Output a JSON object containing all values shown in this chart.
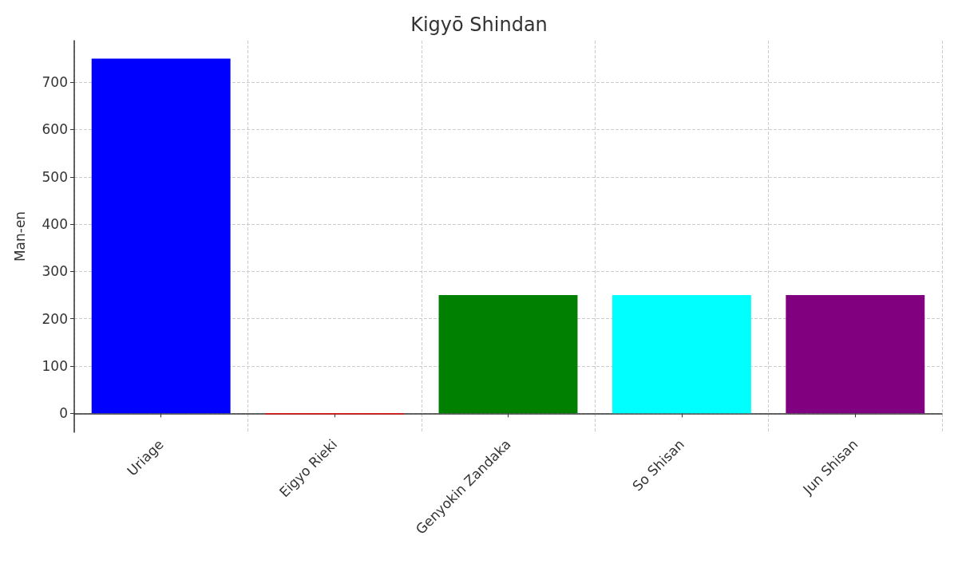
{
  "chart_data": {
    "type": "bar",
    "title": "Kigyō Shindan",
    "ylabel": "Man-en",
    "categories": [
      "Uriage",
      "Eigyo Rieki",
      "Genyokin Zandaka",
      "So Shisan",
      "Jun Shisan"
    ],
    "values": [
      750,
      -2,
      250,
      250,
      250
    ],
    "colors": [
      "#0000ff",
      "#ff0000",
      "#008000",
      "#00ffff",
      "#800080"
    ],
    "ylim": [
      -40,
      788
    ],
    "yticks": [
      0,
      100,
      200,
      300,
      400,
      500,
      600,
      700
    ],
    "grid": true
  }
}
